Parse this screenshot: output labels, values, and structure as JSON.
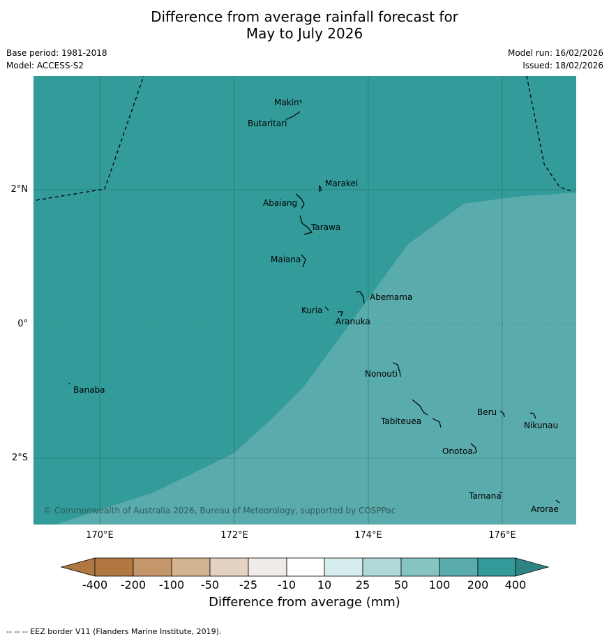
{
  "title": {
    "line1": "Difference from average rainfall forecast for",
    "line2": "May to July 2026"
  },
  "meta": {
    "base_period": "Base period: 1981-2018",
    "model": "Model: ACCESS-S2",
    "model_run": "Model run: 16/02/2026",
    "issued": "Issued: 18/02/2026"
  },
  "map": {
    "latitude_labels": [
      "2°N",
      "0°",
      "2°S"
    ],
    "longitude_labels": [
      "170°E",
      "172°E",
      "174°E",
      "176°E"
    ],
    "copyright": "© Commonwealth of Australia 2026, Bureau of Meteorology, supported by COSPPac",
    "island_labels": [
      "Makin",
      "Butaritari",
      "Marakei",
      "Abaiang",
      "Tarawa",
      "Maiana",
      "Abemama",
      "Kuria",
      "Aranuka",
      "Nonouti",
      "Banaba",
      "Beru",
      "Nikunau",
      "Tabiteuea",
      "Onotoa",
      "Tamana",
      "Arorae"
    ],
    "regions": [
      {
        "category": "200 to 400",
        "color": "#339b99"
      },
      {
        "category": "100 to 200",
        "color": "#5aabab"
      }
    ]
  },
  "colorbar": {
    "title": "Difference from average (mm)",
    "ticks": [
      "-400",
      "-200",
      "-100",
      "-50",
      "-25",
      "-10",
      "10",
      "25",
      "50",
      "100",
      "200",
      "400"
    ],
    "colors": [
      "#b07840",
      "#c4966a",
      "#d4b391",
      "#e4d3c2",
      "#efebe8",
      "#ffffff",
      "#d7ecec",
      "#b0d8d7",
      "#86c4c2",
      "#5aabab",
      "#339b99",
      "#2e8482"
    ]
  },
  "footer": "--  --  -- EEZ border V11 (Flanders Marine Institute, 2019)."
}
